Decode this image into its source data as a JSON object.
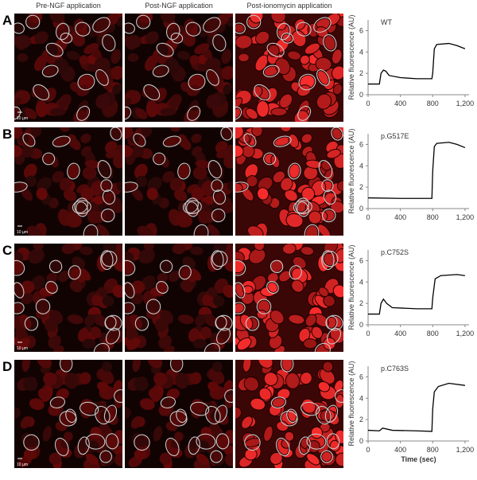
{
  "figure": {
    "column_headers": [
      "Pre-NGF application",
      "Post-NGF application",
      "Post-ionomycin application"
    ],
    "panel_labels": [
      "A",
      "B",
      "C",
      "D"
    ],
    "scale_bar": "10 µm"
  },
  "chart_data": [
    {
      "type": "line",
      "title": "WT",
      "y_label": "Relative fluorescence (AU)",
      "color": "#000000",
      "x": [
        0,
        100,
        140,
        160,
        190,
        220,
        260,
        400,
        600,
        790,
        800,
        820,
        850,
        1000,
        1100,
        1200
      ],
      "values": [
        1.0,
        1.0,
        1.0,
        2.0,
        2.3,
        2.2,
        1.8,
        1.6,
        1.5,
        1.5,
        2.0,
        4.3,
        4.7,
        4.8,
        4.6,
        4.3
      ],
      "xlim": [
        0,
        1250
      ],
      "ylim": [
        0,
        7
      ],
      "yticks": [
        0,
        2,
        4,
        6
      ],
      "xticks": [
        0,
        400,
        800,
        {
          "value": 1200,
          "label": "1,200"
        }
      ]
    },
    {
      "type": "line",
      "title": "p.G517E",
      "y_label": "Relative fluorescence (AU)",
      "color": "#000000",
      "x": [
        0,
        400,
        790,
        800,
        820,
        850,
        1000,
        1100,
        1200
      ],
      "values": [
        1.0,
        0.95,
        0.95,
        3.5,
        5.8,
        6.1,
        6.2,
        6.0,
        5.7
      ],
      "xlim": [
        0,
        1250
      ],
      "ylim": [
        0,
        7
      ],
      "yticks": [
        0,
        2,
        4,
        6
      ],
      "xticks": [
        0,
        400,
        800,
        {
          "value": 1200,
          "label": "1,200"
        }
      ]
    },
    {
      "type": "line",
      "title": "p.C752S",
      "y_label": "Relative fluorescence (AU)",
      "color": "#000000",
      "x": [
        0,
        140,
        160,
        190,
        230,
        300,
        600,
        790,
        800,
        830,
        900,
        1100,
        1200
      ],
      "values": [
        1.0,
        1.0,
        2.0,
        2.4,
        2.0,
        1.6,
        1.5,
        1.5,
        2.5,
        4.3,
        4.6,
        4.7,
        4.6
      ],
      "xlim": [
        0,
        1250
      ],
      "ylim": [
        0,
        7
      ],
      "yticks": [
        0,
        2,
        4,
        6
      ],
      "xticks": [
        0,
        400,
        800,
        {
          "value": 1200,
          "label": "1,200"
        }
      ]
    },
    {
      "type": "line",
      "title": "p.C763S",
      "y_label": "Relative fluorescence (AU)",
      "x_label": "Time (sec)",
      "color": "#000000",
      "x": [
        0,
        140,
        180,
        300,
        600,
        790,
        800,
        820,
        870,
        1000,
        1200
      ],
      "values": [
        1.0,
        0.95,
        1.2,
        1.0,
        0.95,
        0.9,
        3.0,
        4.6,
        5.1,
        5.4,
        5.2
      ],
      "xlim": [
        0,
        1250
      ],
      "ylim": [
        0,
        7
      ],
      "yticks": [
        0,
        2,
        4,
        6
      ],
      "xticks": [
        0,
        400,
        800,
        {
          "value": 1200,
          "label": "1,200"
        }
      ]
    }
  ]
}
